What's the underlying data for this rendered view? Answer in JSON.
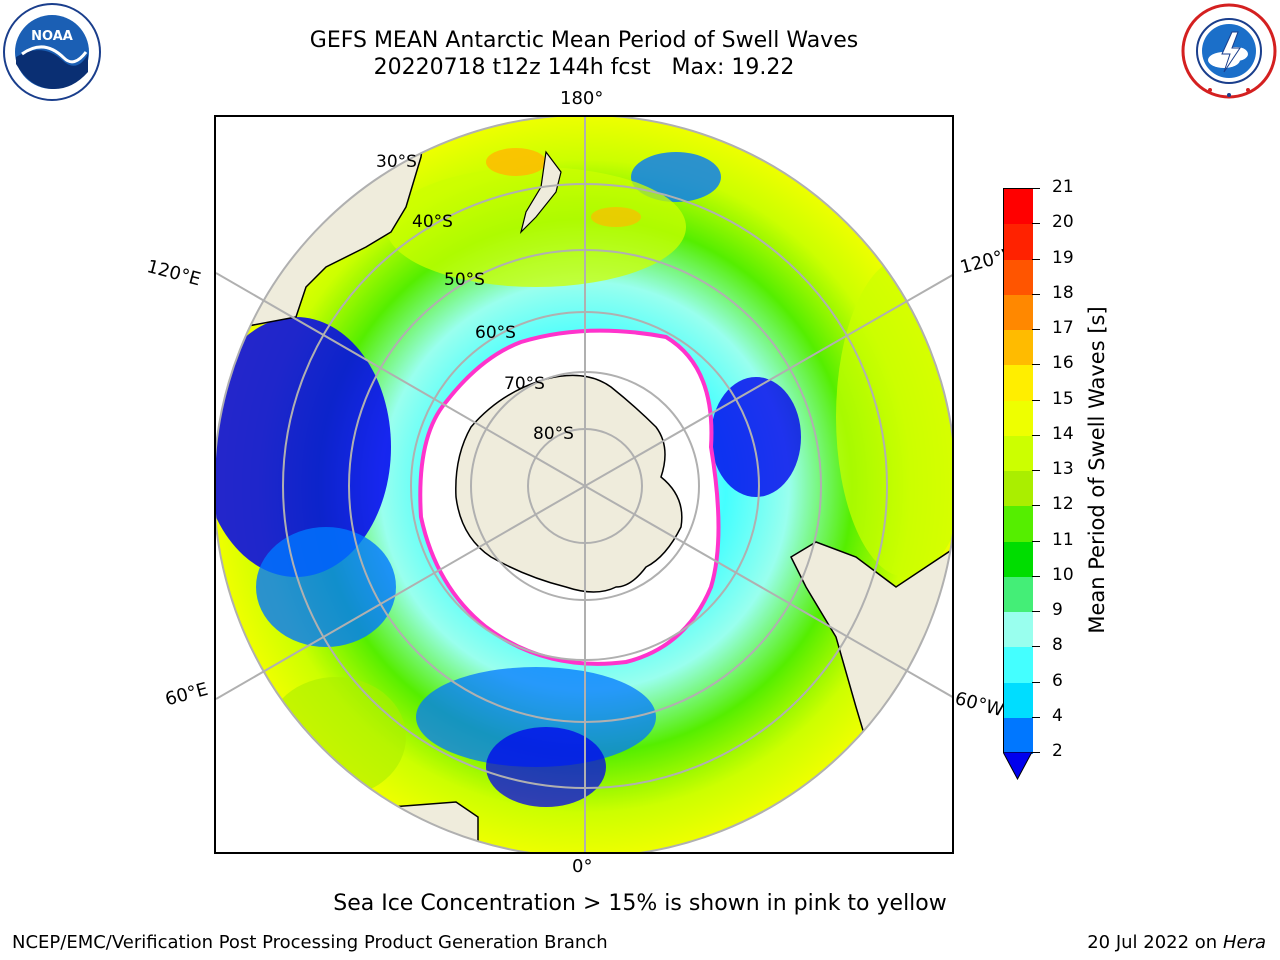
{
  "header": {
    "title_line1": "GEFS MEAN Antarctic Mean Period of Swell Waves",
    "title_line2": "20220718 t12z 144h fcst   Max: 19.22"
  },
  "logos": {
    "left": {
      "name": "NOAA",
      "text": "NOAA"
    },
    "right": {
      "name": "National Weather Service"
    }
  },
  "map": {
    "projection": "south-polar-stereographic",
    "longitude_labels": {
      "top": "180°",
      "left_upper": "120°E",
      "right_upper": "120°W",
      "left_lower": "60°E",
      "right_lower": "60°W",
      "bottom": "0°"
    },
    "latitude_labels": [
      "30°S",
      "40°S",
      "50°S",
      "60°S",
      "70°S",
      "80°S"
    ],
    "colors": {
      "land": "#efecdc",
      "ocean_fill": "#ffffff",
      "ice_edge": "#ff33cc",
      "grid": "#b0b0b0"
    }
  },
  "colorbar": {
    "title": "Mean Period of Swell Waves [s]",
    "ticks": [
      "2",
      "4",
      "6",
      "8",
      "9",
      "10",
      "11",
      "12",
      "13",
      "14",
      "15",
      "16",
      "17",
      "18",
      "19",
      "20",
      "21"
    ],
    "colors": [
      "#0000ee",
      "#0077ff",
      "#00ddff",
      "#44ffff",
      "#99ffee",
      "#44ee77",
      "#00dd00",
      "#55ee00",
      "#aaee00",
      "#ccff00",
      "#eeff00",
      "#ffee00",
      "#ffbb00",
      "#ff8800",
      "#ff5500",
      "#ff2200",
      "#ff0000"
    ],
    "extend_color": "#0000ee"
  },
  "annotation": "Sea Ice Concentration > 15% is shown in pink to yellow",
  "footer": {
    "left": "NCEP/EMC/Verification Post Processing Product Generation Branch",
    "right_date": "20 Jul 2022 on ",
    "right_machine": "Hera"
  }
}
